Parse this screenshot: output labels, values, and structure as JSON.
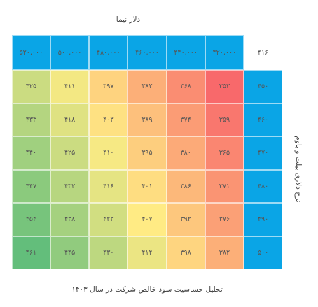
{
  "title": "دلار نیما",
  "side_label": "نرخ دلاری بیلت و باوم",
  "caption": "تحلیل حساسیت سود خالص شرکت در سال ۱۴۰۳",
  "table": {
    "corner": "۴۱۶",
    "columns": [
      "۴۲۰,۰۰۰",
      "۴۴۰,۰۰۰",
      "۴۶۰,۰۰۰",
      "۴۸۰,۰۰۰",
      "۵۰۰,۰۰۰",
      "۵۲۰,۰۰۰"
    ],
    "row_headers": [
      "۴۵۰",
      "۴۶۰",
      "۴۷۰",
      "۴۸۰",
      "۴۹۰",
      "۵۰۰"
    ],
    "rows": [
      [
        "۳۵۳",
        "۳۶۸",
        "۳۸۲",
        "۳۹۷",
        "۴۱۱",
        "۴۲۵"
      ],
      [
        "۳۵۹",
        "۳۷۴",
        "۳۸۹",
        "۴۰۳",
        "۴۱۸",
        "۴۳۳"
      ],
      [
        "۳۶۵",
        "۳۸۰",
        "۳۹۵",
        "۴۱۰",
        "۴۲۵",
        "۴۴۰"
      ],
      [
        "۳۷۱",
        "۳۸۶",
        "۴۰۱",
        "۴۱۶",
        "۴۳۲",
        "۴۴۷"
      ],
      [
        "۳۷۶",
        "۳۹۲",
        "۴۰۷",
        "۴۲۳",
        "۴۳۸",
        "۴۵۴"
      ],
      [
        "۳۸۲",
        "۳۹۸",
        "۴۱۴",
        "۴۳۰",
        "۴۴۵",
        "۴۶۱"
      ]
    ],
    "header_color": "#0aa5e6",
    "color_scale": [
      "#f8696b",
      "#ffeb84",
      "#63be7b"
    ]
  }
}
